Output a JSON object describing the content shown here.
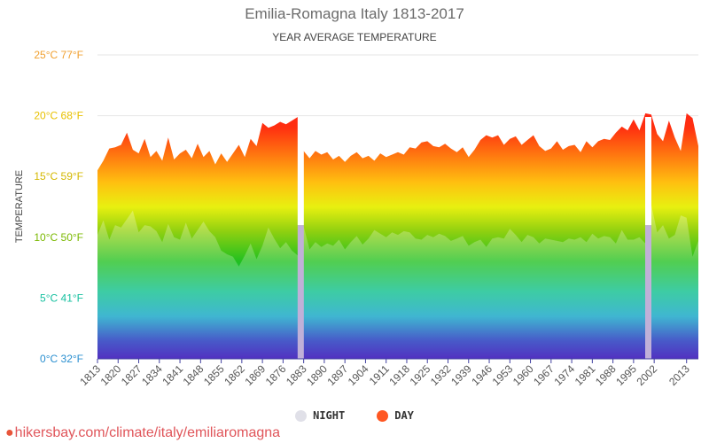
{
  "chart_data": {
    "type": "area",
    "title": "Emilia-Romagna Italy 1813-2017",
    "subtitle": "YEAR AVERAGE TEMPERATURE",
    "ylabel": "TEMPERATURE",
    "ylim": [
      0,
      25
    ],
    "y_ticks": [
      {
        "value": 25,
        "label": "25°C 77°F",
        "color": "#f0a030"
      },
      {
        "value": 20,
        "label": "20°C 68°F",
        "color": "#e8c000"
      },
      {
        "value": 15,
        "label": "15°C 59°F",
        "color": "#d4b800"
      },
      {
        "value": 10,
        "label": "10°C 50°F",
        "color": "#7ab800"
      },
      {
        "value": 5,
        "label": "5°C 41°F",
        "color": "#17c0a0"
      },
      {
        "value": 0,
        "label": "0°C 32°F",
        "color": "#2a8fd0"
      }
    ],
    "x_ticks": [
      "1813",
      "1820",
      "1827",
      "1834",
      "1841",
      "1848",
      "1855",
      "1862",
      "1869",
      "1876",
      "1883",
      "1890",
      "1897",
      "1904",
      "1911",
      "1918",
      "1925",
      "1932",
      "1939",
      "1946",
      "1953",
      "1960",
      "1967",
      "1974",
      "1981",
      "1988",
      "1995",
      "2002",
      "2013"
    ],
    "x_range": [
      1813,
      2017
    ],
    "grid": true,
    "legend_position": "bottom",
    "series": [
      {
        "name": "NIGHT",
        "color": "#e0e0e8",
        "x": [
          1813,
          1815,
          1817,
          1819,
          1821,
          1823,
          1825,
          1827,
          1829,
          1831,
          1833,
          1835,
          1837,
          1839,
          1841,
          1843,
          1845,
          1847,
          1849,
          1851,
          1853,
          1855,
          1857,
          1859,
          1861,
          1863,
          1865,
          1867,
          1869,
          1871,
          1873,
          1875,
          1877,
          1879,
          1881,
          1883,
          1885,
          1887,
          1889,
          1891,
          1893,
          1895,
          1897,
          1899,
          1901,
          1903,
          1905,
          1907,
          1909,
          1911,
          1913,
          1915,
          1917,
          1919,
          1921,
          1923,
          1925,
          1927,
          1929,
          1931,
          1933,
          1935,
          1937,
          1939,
          1941,
          1943,
          1945,
          1947,
          1949,
          1951,
          1953,
          1955,
          1957,
          1959,
          1961,
          1963,
          1965,
          1967,
          1969,
          1971,
          1973,
          1975,
          1977,
          1979,
          1981,
          1983,
          1985,
          1987,
          1989,
          1991,
          1993,
          1995,
          1997,
          1999,
          2001,
          2003,
          2005,
          2007,
          2009,
          2011,
          2013,
          2015,
          2017
        ],
        "values": [
          10.2,
          11.4,
          9.8,
          11.0,
          10.8,
          11.5,
          12.2,
          10.4,
          11.0,
          10.9,
          10.5,
          9.6,
          11.1,
          10.0,
          9.8,
          11.2,
          9.9,
          10.6,
          11.3,
          10.5,
          10.0,
          8.9,
          8.6,
          8.4,
          7.6,
          8.5,
          9.5,
          8.2,
          9.3,
          10.8,
          9.9,
          9.1,
          9.6,
          8.9,
          8.5,
          10.9,
          9.0,
          9.6,
          9.2,
          9.5,
          9.3,
          9.8,
          9.0,
          9.6,
          10.1,
          9.4,
          9.9,
          10.6,
          10.3,
          10.0,
          10.4,
          10.2,
          10.5,
          10.4,
          9.9,
          9.8,
          10.2,
          10.0,
          10.3,
          10.1,
          9.7,
          9.9,
          10.1,
          9.3,
          9.6,
          9.8,
          9.2,
          9.9,
          10.0,
          9.9,
          10.7,
          10.2,
          9.6,
          10.2,
          10.0,
          9.5,
          9.9,
          9.8,
          9.7,
          9.6,
          9.9,
          9.8,
          10.0,
          9.6,
          10.3,
          9.9,
          10.1,
          10.0,
          9.5,
          10.6,
          9.8,
          9.8,
          10.0,
          9.5,
          12.7,
          10.4,
          11.0,
          9.9,
          10.2,
          11.8,
          11.6,
          8.4,
          9.7
        ]
      },
      {
        "name": "DAY",
        "color": "#ff5722",
        "x": [
          1813,
          1815,
          1817,
          1819,
          1821,
          1823,
          1825,
          1827,
          1829,
          1831,
          1833,
          1835,
          1837,
          1839,
          1841,
          1843,
          1845,
          1847,
          1849,
          1851,
          1853,
          1855,
          1857,
          1859,
          1861,
          1863,
          1865,
          1867,
          1869,
          1871,
          1873,
          1875,
          1877,
          1879,
          1881,
          1883,
          1885,
          1887,
          1889,
          1891,
          1893,
          1895,
          1897,
          1899,
          1901,
          1903,
          1905,
          1907,
          1909,
          1911,
          1913,
          1915,
          1917,
          1919,
          1921,
          1923,
          1925,
          1927,
          1929,
          1931,
          1933,
          1935,
          1937,
          1939,
          1941,
          1943,
          1945,
          1947,
          1949,
          1951,
          1953,
          1955,
          1957,
          1959,
          1961,
          1963,
          1965,
          1967,
          1969,
          1971,
          1973,
          1975,
          1977,
          1979,
          1981,
          1983,
          1985,
          1987,
          1989,
          1991,
          1993,
          1995,
          1997,
          1999,
          2001,
          2003,
          2005,
          2007,
          2009,
          2011,
          2013,
          2015,
          2017
        ],
        "values": [
          15.5,
          16.3,
          17.3,
          17.4,
          17.6,
          18.6,
          17.2,
          16.9,
          18.1,
          16.6,
          17.1,
          16.3,
          18.2,
          16.4,
          16.9,
          17.2,
          16.5,
          17.7,
          16.6,
          17.1,
          16.0,
          16.9,
          16.2,
          16.9,
          17.6,
          16.6,
          18.1,
          17.5,
          19.4,
          19.0,
          19.2,
          19.5,
          19.3,
          19.6,
          19.9,
          17.1,
          16.5,
          17.1,
          16.8,
          17.0,
          16.4,
          16.7,
          16.2,
          16.7,
          17.0,
          16.5,
          16.7,
          16.3,
          16.9,
          16.6,
          16.8,
          17.0,
          16.8,
          17.4,
          17.3,
          17.8,
          17.9,
          17.5,
          17.4,
          17.7,
          17.3,
          17.0,
          17.4,
          16.6,
          17.2,
          18.0,
          18.4,
          18.2,
          18.4,
          17.6,
          18.1,
          18.3,
          17.6,
          18.0,
          18.4,
          17.5,
          17.1,
          17.3,
          17.9,
          17.2,
          17.5,
          17.6,
          17.0,
          17.9,
          17.4,
          17.9,
          18.1,
          18.0,
          18.6,
          19.1,
          18.8,
          19.7,
          18.8,
          20.2,
          20.1,
          18.5,
          17.9,
          19.6,
          18.2,
          17.1,
          20.2,
          19.8,
          17.5
        ]
      }
    ],
    "gaps": [
      1882,
      2000
    ],
    "gap_color": "#c0b0d8"
  },
  "legend": {
    "night_label": "NIGHT",
    "day_label": "DAY",
    "night_color": "#e0e0e8",
    "day_color": "#ff5722"
  },
  "source": {
    "text": "hikersbay.com/climate/italy/emiliaromagna"
  }
}
